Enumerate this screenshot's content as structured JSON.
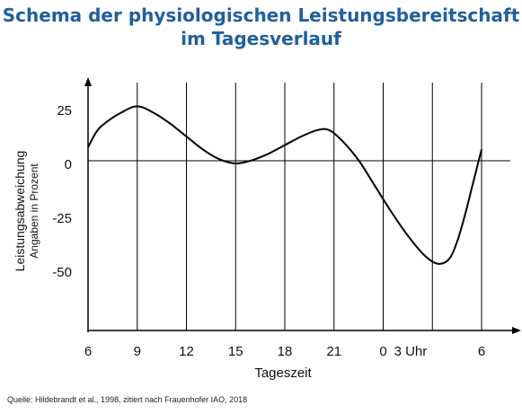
{
  "header": {
    "title_line1": "Schema der physiologischen Leistungsbereitschaft",
    "title_line2": "im Tagesverlauf"
  },
  "footer": {
    "source": "Quelle: Hildebrandt et al., 1998, zitiert nach Frauenhofer IAO,  2018"
  },
  "chart_data": {
    "type": "line",
    "title": "Schema der physiologischen Leistungsbereitschaft im Tagesverlauf",
    "xlabel": "Tageszeit",
    "ylabel": "Leistungsabweichung",
    "ylabel_sub": "Angaben in Prozent",
    "x_ticks": [
      "6",
      "9",
      "12",
      "15",
      "18",
      "21",
      "0",
      "3 Uhr",
      "6"
    ],
    "x_tick_hours": [
      6,
      9,
      12,
      15,
      18,
      21,
      24,
      27,
      30
    ],
    "y_ticks": [
      25,
      0,
      -25,
      -50
    ],
    "ylim": [
      -77,
      38
    ],
    "xlim": [
      6,
      30
    ],
    "grid": "vertical",
    "series": [
      {
        "points": [
          [
            6,
            8
          ],
          [
            6.5,
            15
          ],
          [
            7,
            19
          ],
          [
            8,
            24
          ],
          [
            9,
            27
          ],
          [
            10,
            24
          ],
          [
            11,
            19
          ],
          [
            12,
            13
          ],
          [
            13,
            7
          ],
          [
            14,
            2.5
          ],
          [
            15,
            0.5
          ],
          [
            16,
            2
          ],
          [
            17,
            5
          ],
          [
            18,
            9
          ],
          [
            19,
            13
          ],
          [
            20,
            16
          ],
          [
            20.7,
            16
          ],
          [
            21.5,
            11
          ],
          [
            22.5,
            2
          ],
          [
            23.5,
            -10
          ],
          [
            24.5,
            -22
          ],
          [
            25.5,
            -33
          ],
          [
            26.5,
            -42
          ],
          [
            27.3,
            -46
          ],
          [
            28,
            -44
          ],
          [
            28.5,
            -36
          ],
          [
            29,
            -23
          ],
          [
            29.5,
            -8
          ],
          [
            30,
            7
          ]
        ]
      }
    ]
  }
}
